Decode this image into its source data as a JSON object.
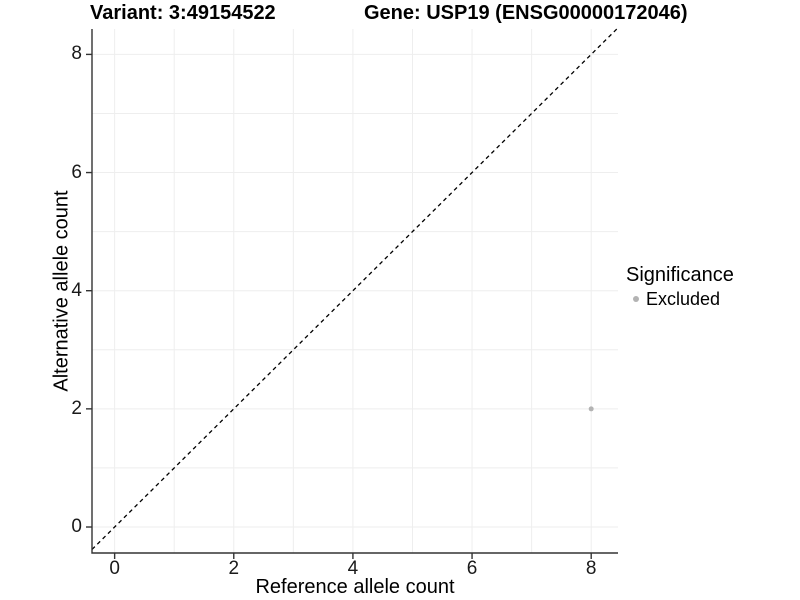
{
  "chart_data": {
    "type": "scatter",
    "titles": {
      "variant": "Variant: 3:49154522",
      "gene": "Gene: USP19 (ENSG00000172046)"
    },
    "xlabel": "Reference allele count",
    "ylabel": "Alternative allele count",
    "xlim": [
      -0.38,
      8.45
    ],
    "ylim": [
      -0.44,
      8.43
    ],
    "xticks": [
      0,
      2,
      4,
      6,
      8
    ],
    "yticks": [
      0,
      2,
      4,
      6,
      8
    ],
    "grid": {
      "show": true,
      "interval": 1,
      "color": "#eeeeee"
    },
    "reference_line": {
      "type": "identity y=x",
      "style": "dashed",
      "color": "#000000"
    },
    "points": [
      {
        "x": 8,
        "y": 2,
        "significance": "Excluded"
      }
    ],
    "point_color": "#b3b3b3",
    "axis_color": "#333333",
    "legend": {
      "title": "Significance",
      "position": "right",
      "items": [
        {
          "label": "Excluded",
          "color": "#b3b3b3"
        }
      ]
    }
  }
}
